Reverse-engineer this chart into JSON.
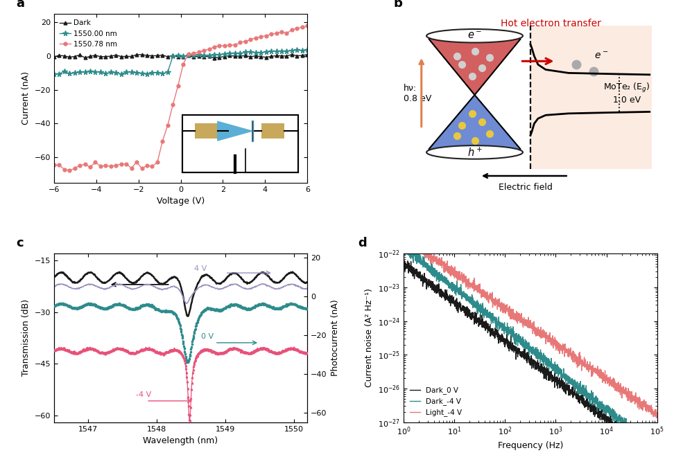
{
  "panel_a": {
    "xlabel": "Voltage (V)",
    "ylabel": "Current (nA)",
    "xlim": [
      -6,
      6
    ],
    "ylim": [
      -75,
      25
    ],
    "yticks": [
      -60,
      -40,
      -20,
      0,
      20
    ],
    "xticks": [
      -6,
      -4,
      -2,
      0,
      2,
      4,
      6
    ],
    "dark_color": "#1a1a1a",
    "nm1550_color": "#2e8b8b",
    "nm155078_color": "#e87878",
    "legend_labels": [
      "Dark",
      "1550.00 nm",
      "1550.78 nm"
    ]
  },
  "panel_c": {
    "xlabel": "Wavelength (nm)",
    "ylabel_left": "Transmission (dB)",
    "ylabel_right": "Photocurrent (nA)",
    "xlim": [
      1546.5,
      1550.2
    ],
    "ylim_left": [
      -62,
      -13
    ],
    "ylim_right": [
      -65,
      22
    ],
    "yticks_left": [
      -60,
      -45,
      -30,
      -15
    ],
    "yticks_right": [
      -60,
      -40,
      -20,
      0,
      20
    ],
    "xticks": [
      1547,
      1548,
      1549,
      1550
    ],
    "black_color": "#1a1a1a",
    "purple_color": "#9b8fc0",
    "teal_color": "#2e8b8b",
    "pink_color": "#e8507a"
  },
  "panel_d": {
    "xlabel": "Frequency (Hz)",
    "ylabel": "Current noise (A² Hz⁻¹)",
    "black_color": "#1a1a1a",
    "teal_color": "#2e8b8b",
    "pink_color": "#e87878",
    "legend_labels": [
      "Dark_0 V",
      "Dark_-4 V",
      "Light_-4 V"
    ]
  },
  "panel_b": {
    "title": "Hot electron transfer",
    "title_color": "#cc0000",
    "bg_color": "#fce8dc",
    "hv_text": "hν:\n0.8 eV",
    "mote2_text": "MoTe₂ (E₉)\n1.0 eV",
    "ef_text": "Electric field"
  }
}
